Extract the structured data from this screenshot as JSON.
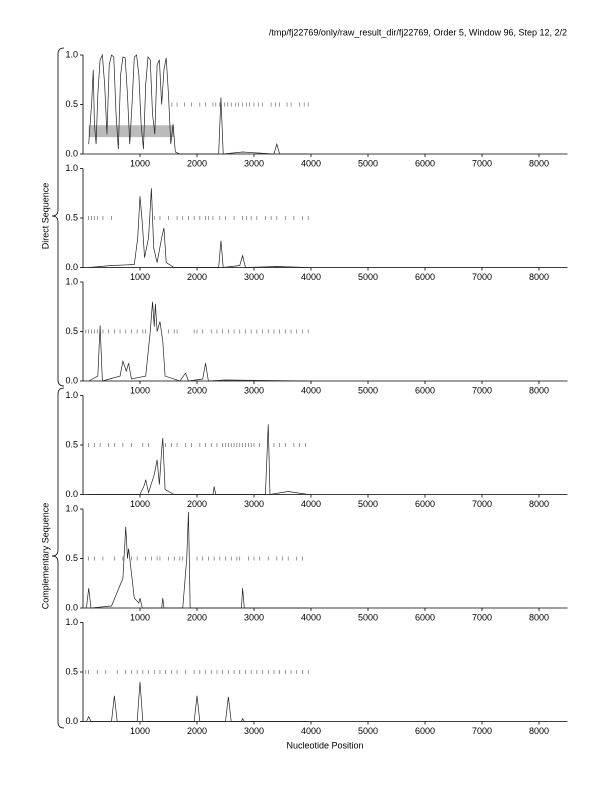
{
  "title": "/tmp/fj22769/only/raw_result_dir/fj22769, Order 5, Window 96, Step 12, 2/2",
  "xlabel": "Nucleotide Position",
  "groups": [
    "Direct Sequence",
    "Complementary Sequence"
  ],
  "chart_data": [
    {
      "type": "line",
      "xlim": [
        0,
        8500
      ],
      "ylim": [
        0,
        1
      ],
      "xticks": [
        1000,
        2000,
        3000,
        4000,
        5000,
        6000,
        7000,
        8000
      ],
      "yticks": [
        {
          "value": 0,
          "label": "0.0"
        },
        {
          "value": 0.5,
          "label": "0.5"
        },
        {
          "value": 1,
          "label": "1.0"
        }
      ],
      "x": [
        100,
        150,
        180,
        200,
        230,
        260,
        300,
        340,
        380,
        420,
        460,
        500,
        540,
        580,
        620,
        660,
        700,
        740,
        780,
        820,
        860,
        900,
        940,
        980,
        1020,
        1060,
        1100,
        1140,
        1180,
        1220,
        1260,
        1300,
        1340,
        1380,
        1420,
        1460,
        1500,
        1540,
        1580,
        1620,
        1700,
        2000,
        2380,
        2420,
        2460,
        2800,
        3350,
        3400,
        3450,
        3950
      ],
      "values": [
        0.1,
        0.5,
        0.85,
        0.3,
        0.1,
        0.6,
        0.95,
        1.0,
        0.7,
        0.2,
        0.9,
        1.0,
        0.98,
        0.4,
        0.05,
        0.8,
        0.98,
        0.97,
        0.6,
        0.1,
        0.5,
        0.98,
        1.0,
        0.8,
        0.3,
        0.05,
        0.7,
        0.98,
        0.95,
        0.4,
        0.2,
        0.9,
        0.95,
        0.5,
        0.85,
        0.97,
        0.6,
        0.1,
        0.3,
        0.02,
        0,
        0,
        0,
        0.57,
        0,
        0.02,
        0,
        0.1,
        0,
        0
      ],
      "stops": {
        "y": 0.5,
        "x": [
          1560,
          1650,
          1780,
          1900,
          2050,
          2150,
          2280,
          2330,
          2400,
          2480,
          2540,
          2600,
          2680,
          2730,
          2800,
          2870,
          2920,
          3000,
          3080,
          3150,
          3300,
          3380,
          3450,
          3580,
          3650,
          3800,
          3880,
          3950
        ]
      },
      "highlight": {
        "x": [
          100,
          1600
        ],
        "y": [
          0.17,
          0.29
        ]
      }
    },
    {
      "type": "line",
      "xlim": [
        0,
        8500
      ],
      "ylim": [
        0,
        1
      ],
      "xticks": [
        1000,
        2000,
        3000,
        4000,
        5000,
        6000,
        7000,
        8000
      ],
      "yticks": [
        {
          "value": 0,
          "label": "0.0"
        },
        {
          "value": 0.5,
          "label": "0.5"
        },
        {
          "value": 1,
          "label": "1.0"
        }
      ],
      "x": [
        100,
        500,
        900,
        960,
        1000,
        1040,
        1080,
        1150,
        1200,
        1240,
        1300,
        1380,
        1420,
        1460,
        1600,
        2380,
        2420,
        2460,
        2750,
        2800,
        2850,
        3400,
        3950
      ],
      "values": [
        0,
        0.02,
        0.03,
        0.3,
        0.72,
        0.45,
        0.1,
        0.3,
        0.8,
        0.2,
        0.05,
        0.3,
        0.4,
        0.05,
        0,
        0,
        0.27,
        0,
        0.02,
        0.12,
        0,
        0.01,
        0
      ],
      "stops": {
        "y": 0.5,
        "x": [
          100,
          150,
          200,
          250,
          350,
          500,
          1250,
          1350,
          1500,
          1650,
          1750,
          1850,
          1950,
          2050,
          2150,
          2200,
          2280,
          2400,
          2500,
          2650,
          2800,
          2870,
          2950,
          3050,
          3200,
          3300,
          3400,
          3550,
          3700,
          3850,
          3950
        ]
      }
    },
    {
      "type": "line",
      "xlim": [
        0,
        8500
      ],
      "ylim": [
        0,
        1
      ],
      "xticks": [
        1000,
        2000,
        3000,
        4000,
        5000,
        6000,
        7000,
        8000
      ],
      "yticks": [
        {
          "value": 0,
          "label": "0.0"
        },
        {
          "value": 0.5,
          "label": "0.5"
        },
        {
          "value": 1,
          "label": "1.0"
        }
      ],
      "x": [
        100,
        260,
        300,
        340,
        650,
        700,
        760,
        800,
        850,
        1100,
        1180,
        1220,
        1250,
        1270,
        1300,
        1350,
        1400,
        1440,
        1700,
        1800,
        1850,
        2100,
        2150,
        2200,
        2500,
        3950
      ],
      "values": [
        0,
        0.05,
        0.56,
        0,
        0.05,
        0.2,
        0.1,
        0.18,
        0.02,
        0.05,
        0.5,
        0.8,
        0.55,
        0.78,
        0.5,
        0.6,
        0.4,
        0.05,
        0,
        0.08,
        0,
        0.02,
        0.18,
        0,
        0.01,
        0
      ],
      "stops": {
        "y": 0.5,
        "x": [
          50,
          100,
          150,
          200,
          250,
          350,
          450,
          550,
          650,
          750,
          850,
          950,
          1050,
          1100,
          1500,
          1600,
          1650,
          1950,
          2000,
          2100,
          2250,
          2350,
          2450,
          2550,
          2650,
          2750,
          2850,
          2950,
          3050,
          3150,
          3250,
          3350,
          3450,
          3550,
          3650,
          3750,
          3850,
          3950
        ]
      }
    },
    {
      "type": "line",
      "xlim": [
        0,
        8500
      ],
      "ylim": [
        0,
        1
      ],
      "xticks": [
        1000,
        2000,
        3000,
        4000,
        5000,
        6000,
        7000,
        8000
      ],
      "yticks": [
        {
          "value": 0,
          "label": "0.0"
        },
        {
          "value": 0.5,
          "label": "0.5"
        },
        {
          "value": 1,
          "label": "1.0"
        }
      ],
      "x": [
        100,
        1000,
        1080,
        1100,
        1150,
        1250,
        1300,
        1340,
        1380,
        1400,
        1440,
        1600,
        2280,
        2300,
        2330,
        3200,
        3250,
        3280,
        3600,
        3950
      ],
      "values": [
        0,
        0,
        0.1,
        0.15,
        0.02,
        0.2,
        0.35,
        0.1,
        0.45,
        0.57,
        0.05,
        0,
        0,
        0.08,
        0,
        0,
        0.71,
        0,
        0.03,
        0
      ],
      "stops": {
        "y": 0.5,
        "x": [
          100,
          200,
          300,
          450,
          550,
          700,
          850,
          1050,
          1150,
          1450,
          1550,
          1650,
          1800,
          1900,
          2050,
          2150,
          2250,
          2350,
          2450,
          2500,
          2550,
          2600,
          2650,
          2700,
          2750,
          2800,
          2850,
          2900,
          2950,
          3000,
          3100,
          3350,
          3450,
          3550,
          3700,
          3800,
          3900
        ]
      }
    },
    {
      "type": "line",
      "xlim": [
        0,
        8500
      ],
      "ylim": [
        0,
        1
      ],
      "xticks": [
        1000,
        2000,
        3000,
        4000,
        5000,
        6000,
        7000,
        8000
      ],
      "yticks": [
        {
          "value": 0,
          "label": "0.0"
        },
        {
          "value": 0.5,
          "label": "0.5"
        },
        {
          "value": 1,
          "label": "1.0"
        }
      ],
      "x": [
        60,
        100,
        140,
        500,
        700,
        750,
        780,
        800,
        850,
        900,
        980,
        1000,
        1040,
        1380,
        1400,
        1420,
        1750,
        1820,
        1850,
        1880,
        2780,
        2800,
        2830,
        3950
      ],
      "values": [
        0,
        0.2,
        0,
        0.02,
        0.3,
        0.82,
        0.5,
        0.6,
        0.35,
        0.1,
        0.05,
        0.1,
        0,
        0,
        0.1,
        0,
        0,
        0.5,
        0.97,
        0,
        0,
        0.2,
        0,
        0
      ],
      "stops": {
        "y": 0.5,
        "x": [
          100,
          200,
          350,
          550,
          700,
          850,
          950,
          1100,
          1200,
          1300,
          1350,
          1500,
          1600,
          1700,
          1750,
          2000,
          2100,
          2200,
          2300,
          2400,
          2500,
          2600,
          2700,
          2750,
          2900,
          3000,
          3100,
          3250,
          3400,
          3500,
          3600,
          3750,
          3850
        ]
      }
    },
    {
      "type": "line",
      "xlim": [
        0,
        8500
      ],
      "ylim": [
        0,
        1
      ],
      "xticks": [
        1000,
        2000,
        3000,
        4000,
        5000,
        6000,
        7000,
        8000
      ],
      "yticks": [
        {
          "value": 0,
          "label": "0.0"
        },
        {
          "value": 0.5,
          "label": "0.5"
        },
        {
          "value": 1,
          "label": "1.0"
        }
      ],
      "x": [
        60,
        100,
        140,
        500,
        550,
        600,
        950,
        1000,
        1050,
        1950,
        2000,
        2050,
        2500,
        2550,
        2600,
        2780,
        2800,
        2830,
        3950
      ],
      "values": [
        0,
        0.05,
        0,
        0,
        0.26,
        0,
        0,
        0.4,
        0,
        0,
        0.26,
        0,
        0,
        0.25,
        0,
        0,
        0.03,
        0,
        0
      ],
      "stops": {
        "y": 0.5,
        "x": [
          50,
          100,
          250,
          400,
          600,
          750,
          850,
          950,
          1050,
          1150,
          1250,
          1350,
          1450,
          1550,
          1650,
          1800,
          1950,
          2050,
          2150,
          2250,
          2350,
          2450,
          2550,
          2650,
          2750,
          2850,
          2950,
          3050,
          3150,
          3250,
          3350,
          3450,
          3550,
          3650,
          3750,
          3850,
          3950
        ]
      }
    }
  ]
}
